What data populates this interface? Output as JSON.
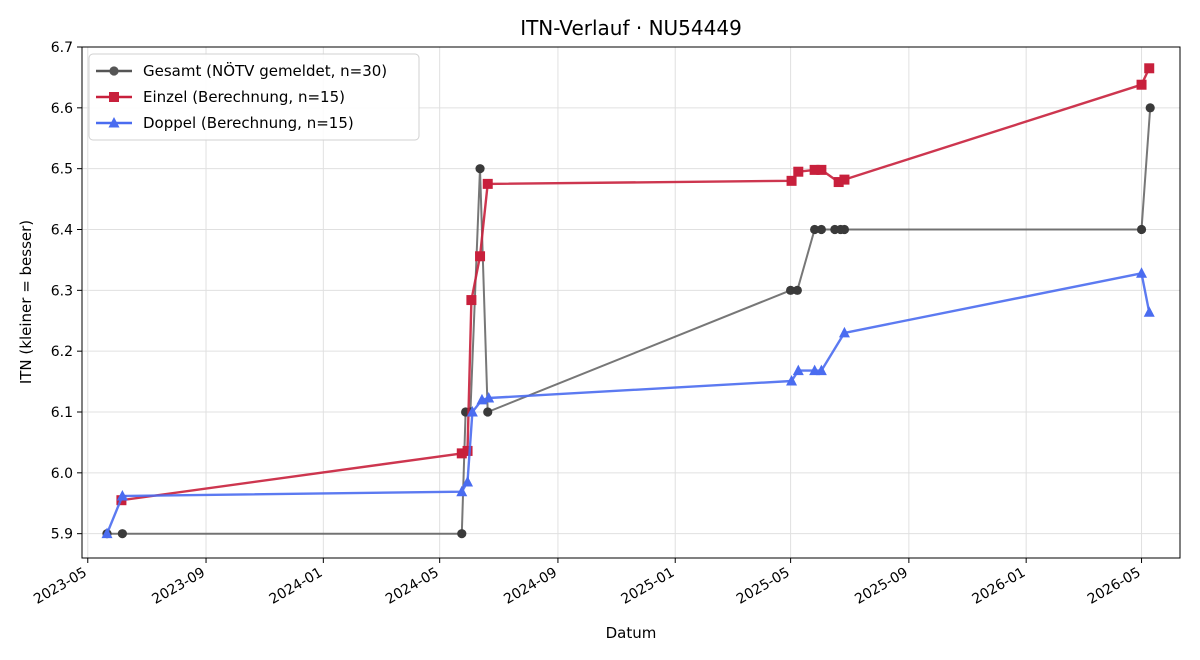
{
  "chart_data": {
    "type": "line",
    "title": "ITN-Verlauf · NU54449",
    "xlabel": "Datum",
    "ylabel": "ITN  (kleiner = besser)",
    "x_type": "date",
    "xlim": [
      "2023-04-25",
      "2026-06-10"
    ],
    "ylim": [
      5.86,
      6.7
    ],
    "y_ticks": [
      5.9,
      6.0,
      6.1,
      6.2,
      6.3,
      6.4,
      6.5,
      6.6,
      6.7
    ],
    "x_ticks": [
      "2023-05",
      "2023-09",
      "2024-01",
      "2024-05",
      "2024-09",
      "2025-01",
      "2025-05",
      "2025-09",
      "2026-01",
      "2026-05"
    ],
    "grid": true,
    "legend_position": "top-left",
    "series": [
      {
        "name": "Gesamt (NÖTV gemeldet, n=30)",
        "color": "#555555",
        "marker": "circle",
        "points": [
          {
            "x": "2023-05-21",
            "y": 5.9
          },
          {
            "x": "2023-06-06",
            "y": 5.9
          },
          {
            "x": "2024-05-24",
            "y": 5.9
          },
          {
            "x": "2024-05-28",
            "y": 6.1
          },
          {
            "x": "2024-06-02",
            "y": 6.1
          },
          {
            "x": "2024-06-12",
            "y": 6.5
          },
          {
            "x": "2024-06-20",
            "y": 6.1
          },
          {
            "x": "2025-05-01",
            "y": 6.3
          },
          {
            "x": "2025-05-08",
            "y": 6.3
          },
          {
            "x": "2025-05-26",
            "y": 6.4
          },
          {
            "x": "2025-06-02",
            "y": 6.4
          },
          {
            "x": "2025-06-16",
            "y": 6.4
          },
          {
            "x": "2025-06-22",
            "y": 6.4
          },
          {
            "x": "2025-06-26",
            "y": 6.4
          },
          {
            "x": "2026-05-01",
            "y": 6.4
          },
          {
            "x": "2026-05-10",
            "y": 6.6
          }
        ]
      },
      {
        "name": "Einzel (Berechnung, n=15)",
        "color": "#c8203c",
        "marker": "square",
        "points": [
          {
            "x": "2023-06-05",
            "y": 5.955
          },
          {
            "x": "2024-05-24",
            "y": 6.032
          },
          {
            "x": "2024-05-30",
            "y": 6.036
          },
          {
            "x": "2024-06-03",
            "y": 6.284
          },
          {
            "x": "2024-06-12",
            "y": 6.356
          },
          {
            "x": "2024-06-20",
            "y": 6.475
          },
          {
            "x": "2025-05-02",
            "y": 6.48
          },
          {
            "x": "2025-05-09",
            "y": 6.495
          },
          {
            "x": "2025-05-26",
            "y": 6.498
          },
          {
            "x": "2025-06-02",
            "y": 6.498
          },
          {
            "x": "2025-06-20",
            "y": 6.478
          },
          {
            "x": "2025-06-26",
            "y": 6.482
          },
          {
            "x": "2026-05-01",
            "y": 6.638
          },
          {
            "x": "2026-05-09",
            "y": 6.665
          }
        ]
      },
      {
        "name": "Doppel (Berechnung, n=15)",
        "color": "#4a6cf0",
        "marker": "triangle",
        "points": [
          {
            "x": "2023-05-21",
            "y": 5.9
          },
          {
            "x": "2023-06-06",
            "y": 5.962
          },
          {
            "x": "2024-05-24",
            "y": 5.969
          },
          {
            "x": "2024-05-30",
            "y": 5.985
          },
          {
            "x": "2024-06-04",
            "y": 6.1
          },
          {
            "x": "2024-06-14",
            "y": 6.12
          },
          {
            "x": "2024-06-21",
            "y": 6.123
          },
          {
            "x": "2025-05-02",
            "y": 6.151
          },
          {
            "x": "2025-05-09",
            "y": 6.168
          },
          {
            "x": "2025-05-26",
            "y": 6.168
          },
          {
            "x": "2025-06-02",
            "y": 6.168
          },
          {
            "x": "2025-06-26",
            "y": 6.23
          },
          {
            "x": "2026-05-01",
            "y": 6.328
          },
          {
            "x": "2026-05-09",
            "y": 6.264
          }
        ]
      }
    ]
  }
}
